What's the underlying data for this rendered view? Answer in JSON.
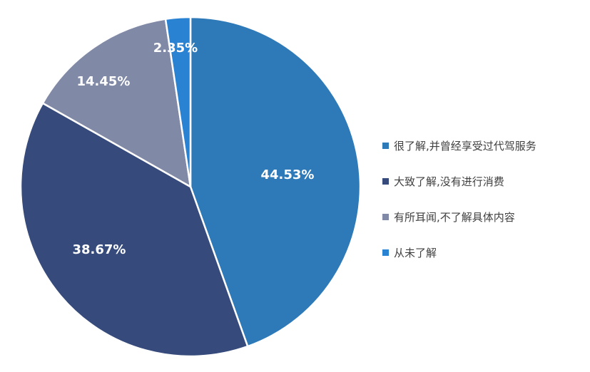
{
  "chart_data": {
    "type": "pie",
    "title": "",
    "legend_position": "right",
    "start_angle_deg": 0,
    "direction": "clockwise",
    "slices": [
      {
        "label": "很了解,并曾经享受过代驾服务",
        "value": 44.53,
        "display": "44.53%",
        "color": "#2E7AB8"
      },
      {
        "label": "大致了解,没有进行消费",
        "value": 38.67,
        "display": "38.67%",
        "color": "#364B7C"
      },
      {
        "label": "有所耳闻,不了解具体内容",
        "value": 14.45,
        "display": "14.45%",
        "color": "#8089A6"
      },
      {
        "label": "从未了解",
        "value": 2.35,
        "display": "2.35%",
        "color": "#2A82D3"
      }
    ]
  }
}
